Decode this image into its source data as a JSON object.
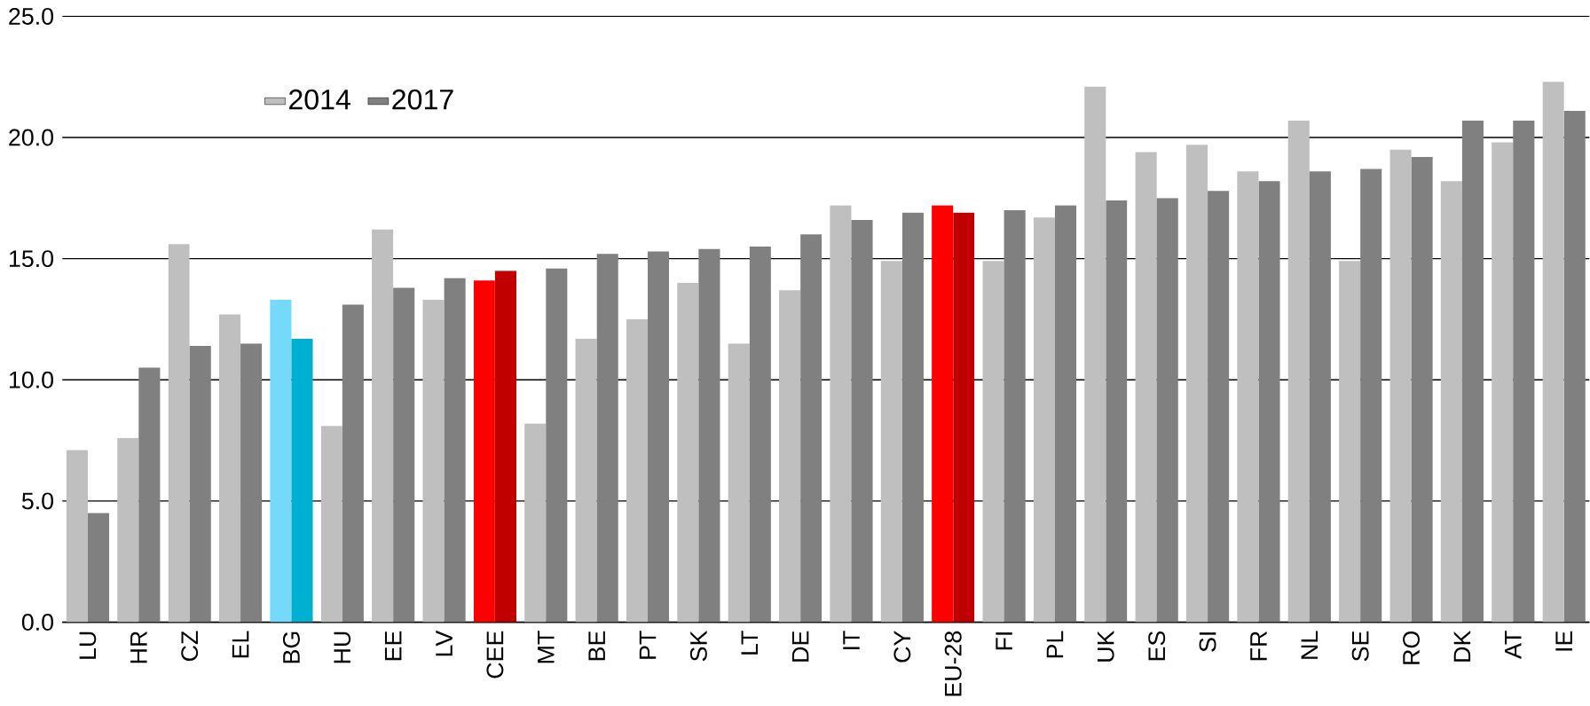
{
  "chart_data": {
    "type": "bar",
    "categories": [
      "LU",
      "HR",
      "CZ",
      "EL",
      "BG",
      "HU",
      "EE",
      "LV",
      "CEE",
      "MT",
      "BE",
      "PT",
      "SK",
      "LT",
      "DE",
      "IT",
      "CY",
      "EU-28",
      "FI",
      "PL",
      "UK",
      "ES",
      "SI",
      "FR",
      "NL",
      "SE",
      "RO",
      "DK",
      "AT",
      "IE"
    ],
    "series": [
      {
        "name": "2014",
        "color": "#bfbfbf",
        "colors": [
          "#bfbfbf",
          "#bfbfbf",
          "#bfbfbf",
          "#bfbfbf",
          "#75d9fa",
          "#bfbfbf",
          "#bfbfbf",
          "#bfbfbf",
          "#ff0000",
          "#bfbfbf",
          "#bfbfbf",
          "#bfbfbf",
          "#bfbfbf",
          "#bfbfbf",
          "#bfbfbf",
          "#bfbfbf",
          "#bfbfbf",
          "#ff0000",
          "#bfbfbf",
          "#bfbfbf",
          "#bfbfbf",
          "#bfbfbf",
          "#bfbfbf",
          "#bfbfbf",
          "#bfbfbf",
          "#bfbfbf",
          "#bfbfbf",
          "#bfbfbf",
          "#bfbfbf",
          "#bfbfbf"
        ],
        "values": [
          7.1,
          7.6,
          15.6,
          12.7,
          13.3,
          8.1,
          16.2,
          13.3,
          14.1,
          8.2,
          11.7,
          12.5,
          14.0,
          11.5,
          13.7,
          17.2,
          14.9,
          17.2,
          14.9,
          16.7,
          22.1,
          19.4,
          19.7,
          18.6,
          20.7,
          14.9,
          19.5,
          18.2,
          19.8,
          22.3
        ]
      },
      {
        "name": "2017",
        "color": "#808080",
        "colors": [
          "#808080",
          "#808080",
          "#808080",
          "#808080",
          "#00b0d0",
          "#808080",
          "#808080",
          "#808080",
          "#c00000",
          "#808080",
          "#808080",
          "#808080",
          "#808080",
          "#808080",
          "#808080",
          "#808080",
          "#808080",
          "#c00000",
          "#808080",
          "#808080",
          "#808080",
          "#808080",
          "#808080",
          "#808080",
          "#808080",
          "#808080",
          "#808080",
          "#808080",
          "#808080",
          "#808080"
        ],
        "values": [
          4.5,
          10.5,
          11.4,
          11.5,
          11.7,
          13.1,
          13.8,
          14.2,
          14.5,
          14.6,
          15.2,
          15.3,
          15.4,
          15.5,
          16.0,
          16.6,
          16.9,
          16.9,
          17.0,
          17.2,
          17.4,
          17.5,
          17.8,
          18.2,
          18.6,
          18.7,
          19.2,
          20.7,
          20.7,
          21.1
        ]
      }
    ],
    "ylim": [
      0,
      25
    ],
    "yticks": [
      {
        "value": 0,
        "label": "0.0"
      },
      {
        "value": 5,
        "label": "5.0"
      },
      {
        "value": 10,
        "label": "10.0"
      },
      {
        "value": 15,
        "label": "15.0"
      },
      {
        "value": 20,
        "label": "20.0"
      },
      {
        "value": 25,
        "label": "25.0"
      }
    ],
    "grid": "y",
    "legend": "top left"
  }
}
